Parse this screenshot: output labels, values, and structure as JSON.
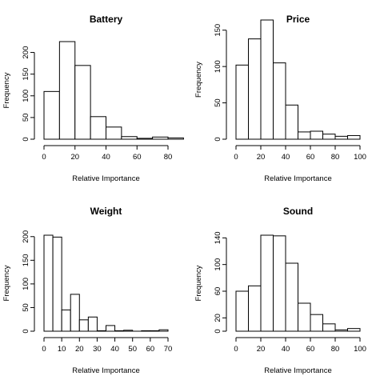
{
  "chart_data": [
    {
      "type": "histogram",
      "title": "Battery",
      "xlabel": "Relative Importance",
      "ylabel": "Frequency",
      "bins": [
        0,
        10,
        20,
        30,
        40,
        50,
        60,
        70,
        80,
        90
      ],
      "values": [
        110,
        225,
        170,
        52,
        28,
        6,
        2,
        5,
        3
      ],
      "xticks": [
        0,
        20,
        40,
        60,
        80
      ],
      "yticks": [
        0,
        50,
        100,
        150,
        200
      ],
      "ylim": [
        0,
        225
      ],
      "grid": false
    },
    {
      "type": "histogram",
      "title": "Price",
      "xlabel": "Relative Importance",
      "ylabel": "Frequency",
      "bins": [
        0,
        10,
        20,
        30,
        40,
        50,
        60,
        70,
        80,
        90,
        100
      ],
      "values": [
        102,
        138,
        164,
        105,
        47,
        10,
        11,
        7,
        4,
        5
      ],
      "xticks": [
        0,
        20,
        40,
        60,
        80,
        100
      ],
      "yticks": [
        0,
        50,
        100,
        150
      ],
      "ylim": [
        0,
        164
      ],
      "grid": false
    },
    {
      "type": "histogram",
      "title": "Weight",
      "xlabel": "Relative Importance",
      "ylabel": "Frequency",
      "bins": [
        0,
        5,
        10,
        15,
        20,
        25,
        30,
        35,
        40,
        45,
        50,
        55,
        60,
        65,
        70
      ],
      "values": [
        203,
        199,
        45,
        78,
        24,
        30,
        1,
        12,
        1,
        2,
        0,
        1,
        1,
        3
      ],
      "xticks": [
        0,
        10,
        20,
        30,
        40,
        50,
        60,
        70
      ],
      "yticks": [
        0,
        50,
        100,
        150,
        200
      ],
      "ylim": [
        0,
        203
      ],
      "grid": false
    },
    {
      "type": "histogram",
      "title": "Sound",
      "xlabel": "Relative Importance",
      "ylabel": "Frequency",
      "bins": [
        0,
        10,
        20,
        30,
        40,
        50,
        60,
        70,
        80,
        90,
        100
      ],
      "values": [
        60,
        68,
        144,
        143,
        102,
        42,
        25,
        11,
        2,
        4
      ],
      "xticks": [
        0,
        20,
        40,
        60,
        80,
        100
      ],
      "yticks": [
        0,
        20,
        60,
        100,
        140
      ],
      "ylim": [
        0,
        144
      ],
      "grid": false
    }
  ]
}
